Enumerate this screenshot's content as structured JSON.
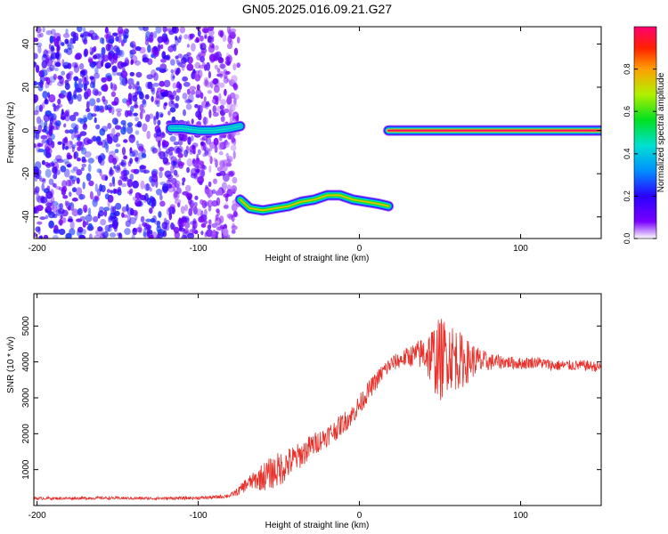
{
  "title": "GN05.2025.016.09.21.G27",
  "chart_data": [
    {
      "type": "heatmap",
      "xlabel": "Height of straight line (km)",
      "ylabel": "Frequency (Hz)",
      "xlim": [
        -202,
        150
      ],
      "ylim": [
        -50,
        48
      ],
      "x_ticks": [
        -200,
        -100,
        0,
        100
      ],
      "y_ticks": [
        -40,
        -20,
        0,
        20,
        40
      ],
      "colorbar": {
        "label": "Normalized spectral amplitude",
        "range": [
          0,
          1
        ],
        "ticks": [
          0.0,
          0.2,
          0.4,
          0.6,
          0.8
        ]
      },
      "noise_region": {
        "x": [
          -202,
          -75
        ],
        "y": [
          -50,
          48
        ]
      },
      "ridges": [
        {
          "name": "",
          "x": [
            -117,
            -110,
            -100,
            -90,
            -80,
            -74
          ],
          "y": [
            1,
            1,
            0,
            0,
            1,
            2
          ],
          "width_km": 2,
          "amplitude": 0.45
        },
        {
          "name": "",
          "x": [
            -74,
            -68,
            -60,
            -52,
            -44,
            -36,
            -28,
            -20,
            -12,
            -4,
            4,
            12,
            18
          ],
          "y": [
            -32,
            -36,
            -37,
            -36,
            -35,
            -33,
            -32,
            -30,
            -30,
            -32,
            -33,
            -34,
            -35
          ],
          "width_km": 2,
          "amplitude": 0.75
        },
        {
          "name": "",
          "x": [
            18,
            40,
            60,
            80,
            100,
            120,
            150
          ],
          "y": [
            0,
            0,
            0,
            0,
            0,
            0,
            0
          ],
          "width_km": 2,
          "amplitude": 1.0
        }
      ]
    },
    {
      "type": "line",
      "xlabel": "Height of straight line (km)",
      "ylabel": "SNR (10 * v/v)",
      "xlim": [
        -202,
        150
      ],
      "ylim": [
        0,
        5900
      ],
      "x_ticks": [
        -200,
        -100,
        0,
        100
      ],
      "y_ticks": [
        1000,
        2000,
        3000,
        4000,
        5000
      ],
      "series": [
        {
          "name": "",
          "color": "#e8302a",
          "x": [
            -202,
            -180,
            -160,
            -140,
            -120,
            -100,
            -90,
            -80,
            -75,
            -70,
            -65,
            -60,
            -55,
            -50,
            -45,
            -40,
            -35,
            -30,
            -25,
            -20,
            -15,
            -10,
            -5,
            0,
            5,
            10,
            15,
            20,
            25,
            30,
            35,
            40,
            45,
            50,
            55,
            60,
            65,
            70,
            75,
            80,
            90,
            100,
            110,
            120,
            130,
            140,
            150
          ],
          "values": [
            200,
            200,
            210,
            200,
            200,
            210,
            230,
            280,
            400,
            600,
            700,
            800,
            900,
            1000,
            1150,
            1300,
            1450,
            1650,
            1800,
            1950,
            2100,
            2300,
            2500,
            2800,
            3150,
            3450,
            3750,
            3950,
            4050,
            4150,
            4200,
            4250,
            4150,
            4050,
            4250,
            4100,
            4000,
            4050,
            4000,
            4000,
            4000,
            3950,
            4000,
            3900,
            3900,
            3900,
            3850
          ],
          "noise_amplitude": [
            40,
            40,
            40,
            40,
            40,
            45,
            50,
            60,
            120,
            200,
            250,
            400,
            450,
            500,
            450,
            400,
            350,
            350,
            300,
            300,
            300,
            300,
            280,
            300,
            280,
            250,
            250,
            230,
            230,
            280,
            350,
            500,
            900,
            1200,
            1000,
            900,
            700,
            500,
            400,
            250,
            180,
            170,
            160,
            160,
            150,
            150,
            150
          ]
        }
      ]
    }
  ]
}
